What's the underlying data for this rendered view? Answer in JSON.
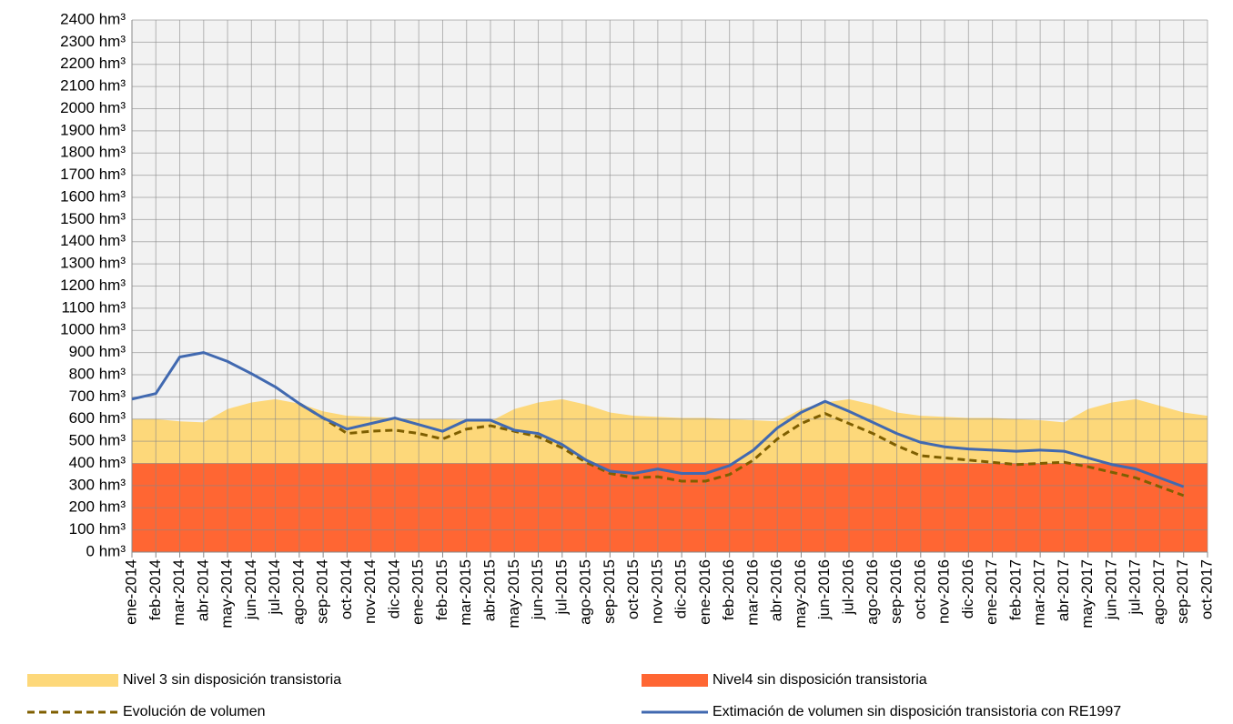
{
  "chart_data": {
    "type": "line",
    "categories": [
      "ene-2014",
      "feb-2014",
      "mar-2014",
      "abr-2014",
      "may-2014",
      "jun-2014",
      "jul-2014",
      "ago-2014",
      "sep-2014",
      "oct-2014",
      "nov-2014",
      "dic-2014",
      "ene-2015",
      "feb-2015",
      "mar-2015",
      "abr-2015",
      "may-2015",
      "jun-2015",
      "jul-2015",
      "ago-2015",
      "sep-2015",
      "oct-2015",
      "nov-2015",
      "dic-2015",
      "ene-2016",
      "feb-2016",
      "mar-2016",
      "abr-2016",
      "may-2016",
      "jun-2016",
      "jul-2016",
      "ago-2016",
      "sep-2016",
      "oct-2016",
      "nov-2016",
      "dic-2016",
      "ene-2017",
      "feb-2017",
      "mar-2017",
      "abr-2017",
      "may-2017",
      "jun-2017",
      "jul-2017",
      "ago-2017",
      "sep-2017",
      "oct-2017"
    ],
    "ylim": [
      0,
      2400
    ],
    "yticks": [
      {
        "value": 0,
        "label": "0 hm³"
      },
      {
        "value": 100,
        "label": "100 hm³"
      },
      {
        "value": 200,
        "label": "200 hm³"
      },
      {
        "value": 300,
        "label": "300 hm³"
      },
      {
        "value": 400,
        "label": "400 hm³"
      },
      {
        "value": 500,
        "label": "500 hm³"
      },
      {
        "value": 600,
        "label": "600 hm³"
      },
      {
        "value": 700,
        "label": "700 hm³"
      },
      {
        "value": 800,
        "label": "800 hm³"
      },
      {
        "value": 900,
        "label": "900 hm³"
      },
      {
        "value": 1000,
        "label": "1000 hm³"
      },
      {
        "value": 1100,
        "label": "1100 hm³"
      },
      {
        "value": 1200,
        "label": "1200 hm³"
      },
      {
        "value": 1300,
        "label": "1300 hm³"
      },
      {
        "value": 1400,
        "label": "1400 hm³"
      },
      {
        "value": 1500,
        "label": "1500 hm³"
      },
      {
        "value": 1600,
        "label": "1600 hm³"
      },
      {
        "value": 1700,
        "label": "1700 hm³"
      },
      {
        "value": 1800,
        "label": "1800 hm³"
      },
      {
        "value": 1900,
        "label": "1900 hm³"
      },
      {
        "value": 2000,
        "label": "2000 hm³"
      },
      {
        "value": 2100,
        "label": "2100 hm³"
      },
      {
        "value": 2200,
        "label": "2200 hm³"
      },
      {
        "value": 2300,
        "label": "2300 hm³"
      },
      {
        "value": 2400,
        "label": "2400 hm³"
      }
    ],
    "grid": true,
    "series": [
      {
        "name": "Nivel 3 sin disposición transistoria",
        "style": "area",
        "color": "#fdd87a",
        "values": [
          600,
          600,
          590,
          585,
          645,
          675,
          690,
          670,
          635,
          615,
          610,
          605,
          600,
          600,
          595,
          590,
          645,
          675,
          690,
          665,
          630,
          615,
          610,
          605,
          605,
          600,
          595,
          590,
          645,
          675,
          690,
          665,
          630,
          615,
          610,
          605,
          605,
          600,
          595,
          585,
          645,
          675,
          690,
          660,
          630,
          615
        ]
      },
      {
        "name": "Nivel4 sin disposición transistoria",
        "style": "area",
        "color": "#ff6633",
        "values": [
          400,
          400,
          400,
          400,
          400,
          400,
          400,
          400,
          400,
          400,
          400,
          400,
          400,
          400,
          400,
          400,
          400,
          400,
          400,
          400,
          400,
          400,
          400,
          400,
          400,
          400,
          400,
          400,
          400,
          400,
          400,
          400,
          400,
          400,
          400,
          400,
          400,
          400,
          400,
          400,
          400,
          400,
          400,
          400,
          400,
          400
        ]
      },
      {
        "name": "Evolución de volumen",
        "style": "dashed",
        "color": "#7f5f00",
        "values": [
          null,
          null,
          null,
          null,
          null,
          null,
          null,
          670,
          605,
          535,
          545,
          550,
          535,
          510,
          555,
          570,
          545,
          520,
          470,
          405,
          355,
          335,
          340,
          320,
          320,
          350,
          415,
          510,
          580,
          625,
          580,
          535,
          480,
          435,
          425,
          415,
          405,
          395,
          400,
          405,
          385,
          360,
          335,
          295,
          255,
          null
        ]
      },
      {
        "name": "Extimación de volumen  sin disposición transistoria con RE1997",
        "style": "solid",
        "color": "#4169b0",
        "values": [
          690,
          715,
          880,
          900,
          860,
          805,
          745,
          670,
          605,
          555,
          580,
          605,
          575,
          545,
          595,
          595,
          550,
          535,
          485,
          415,
          365,
          355,
          375,
          355,
          355,
          390,
          460,
          560,
          630,
          680,
          635,
          585,
          535,
          495,
          475,
          465,
          460,
          455,
          460,
          455,
          425,
          395,
          375,
          335,
          295,
          null
        ]
      }
    ]
  }
}
